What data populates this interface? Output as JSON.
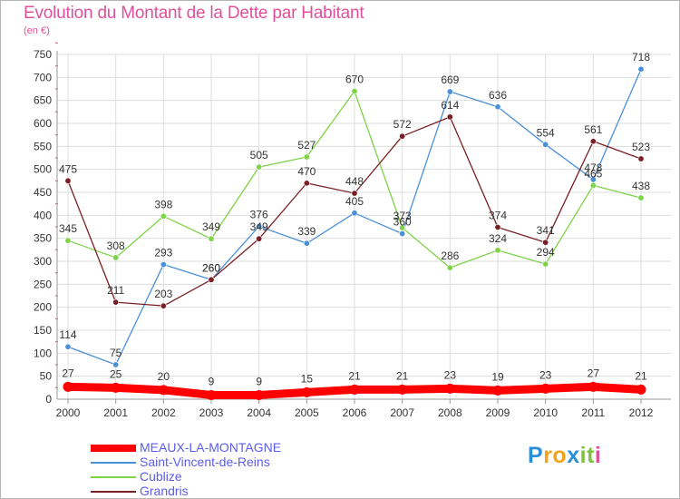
{
  "header": {
    "title": "Evolution du Montant de la Dette par Habitant",
    "subtitle": "(en €)"
  },
  "chart_data": {
    "type": "line",
    "title": "Evolution du Montant de la Dette par Habitant",
    "subtitle": "(en €)",
    "xlabel": "",
    "ylabel": "",
    "ylim": [
      0,
      750
    ],
    "ytick_step": 50,
    "grid": true,
    "legend_position": "bottom-left",
    "x": [
      "2000",
      "2001",
      "2002",
      "2003",
      "2004",
      "2005",
      "2006",
      "2007",
      "2008",
      "2009",
      "2010",
      "2011",
      "2012"
    ],
    "series": [
      {
        "name": "MEAUX-LA-MONTAGNE",
        "color": "#ff0000",
        "emphasis": true,
        "values": [
          27,
          25,
          20,
          9,
          9,
          15,
          21,
          21,
          23,
          19,
          23,
          27,
          21
        ]
      },
      {
        "name": "Saint-Vincent-de-Reins",
        "color": "#4a90d9",
        "values": [
          114,
          75,
          293,
          260,
          376,
          339,
          405,
          360,
          669,
          636,
          554,
          478,
          718
        ]
      },
      {
        "name": "Cublize",
        "color": "#7ed348",
        "values": [
          345,
          308,
          398,
          349,
          505,
          527,
          670,
          373,
          286,
          324,
          294,
          465,
          438
        ]
      },
      {
        "name": "Grandris",
        "color": "#7a1f25",
        "values": [
          475,
          211,
          203,
          260,
          349,
          470,
          448,
          572,
          614,
          374,
          341,
          561,
          523
        ]
      }
    ]
  },
  "legend": {
    "items": [
      "MEAUX-LA-MONTAGNE",
      "Saint-Vincent-de-Reins",
      "Cublize",
      "Grandris"
    ]
  },
  "logo": {
    "letters": [
      "P",
      "r",
      "o",
      "x",
      "i",
      "t",
      "i"
    ],
    "colors": [
      "#2a8fd8",
      "#f2a31a",
      "#f2a31a",
      "#2a8fd8",
      "#7cc242",
      "#7cc242",
      "#e0509a"
    ]
  }
}
